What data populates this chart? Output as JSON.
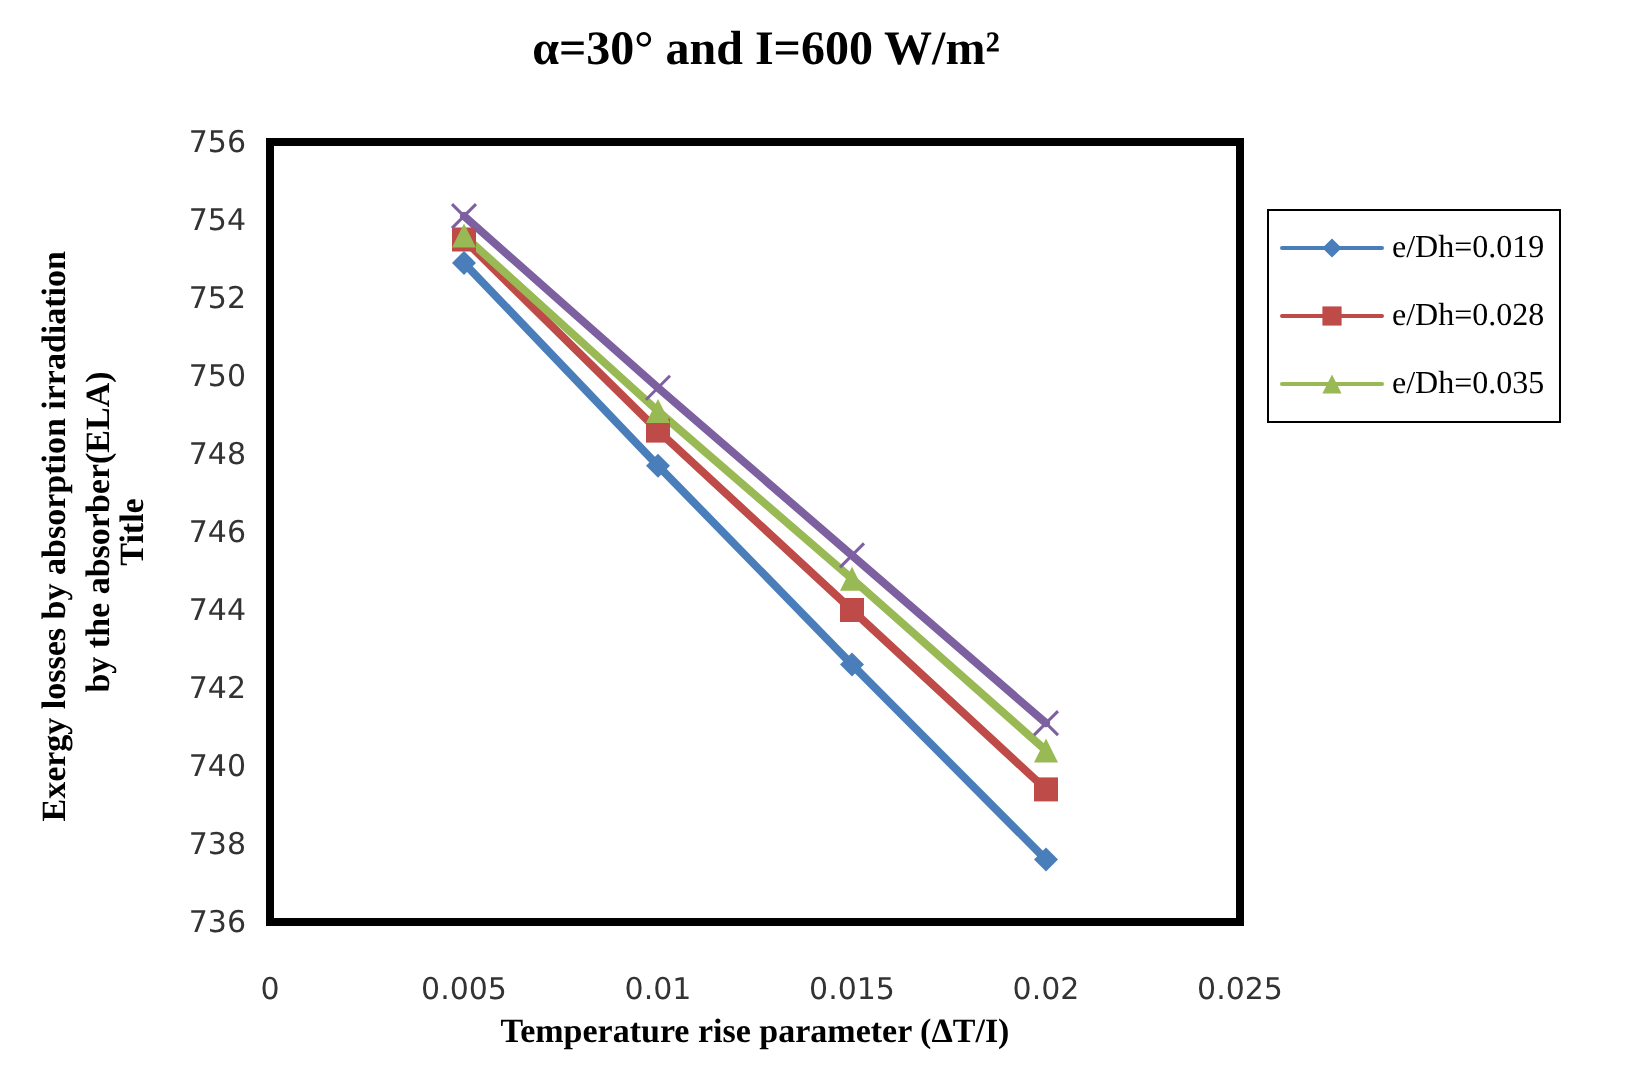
{
  "chart_data": {
    "type": "line",
    "title": "α=30° and I=600 W/m²",
    "xlabel": "Temperature rise parameter (ΔT/I)",
    "ylabel": "Exergy losses by absorption irradiation by the absorber(ELA)",
    "annotations": [
      "Title"
    ],
    "x": [
      0.005,
      0.01,
      0.015,
      0.02
    ],
    "series": [
      {
        "name": "e/Dh=0.019",
        "color": "#4a7ebb",
        "marker": "diamond",
        "values": [
          752.9,
          747.7,
          742.6,
          737.6
        ]
      },
      {
        "name": "e/Dh=0.028",
        "color": "#be4b48",
        "marker": "square",
        "values": [
          753.5,
          748.6,
          744.0,
          739.4
        ]
      },
      {
        "name": "e/Dh=0.035",
        "color": "#98b954",
        "marker": "triangle",
        "values": [
          753.6,
          749.1,
          744.8,
          740.4
        ]
      },
      {
        "color": "#7d60a0",
        "marker": "cross",
        "values": [
          754.1,
          749.7,
          745.4,
          741.1
        ]
      }
    ],
    "xlim": [
      0,
      0.025
    ],
    "xticks": [
      0,
      0.005,
      0.01,
      0.015,
      0.02,
      0.025
    ],
    "ylim": [
      736,
      756
    ],
    "yticks": [
      736,
      738,
      740,
      742,
      744,
      746,
      748,
      750,
      752,
      754,
      756
    ],
    "grid": false,
    "legend": "right",
    "line_style": "solid"
  }
}
